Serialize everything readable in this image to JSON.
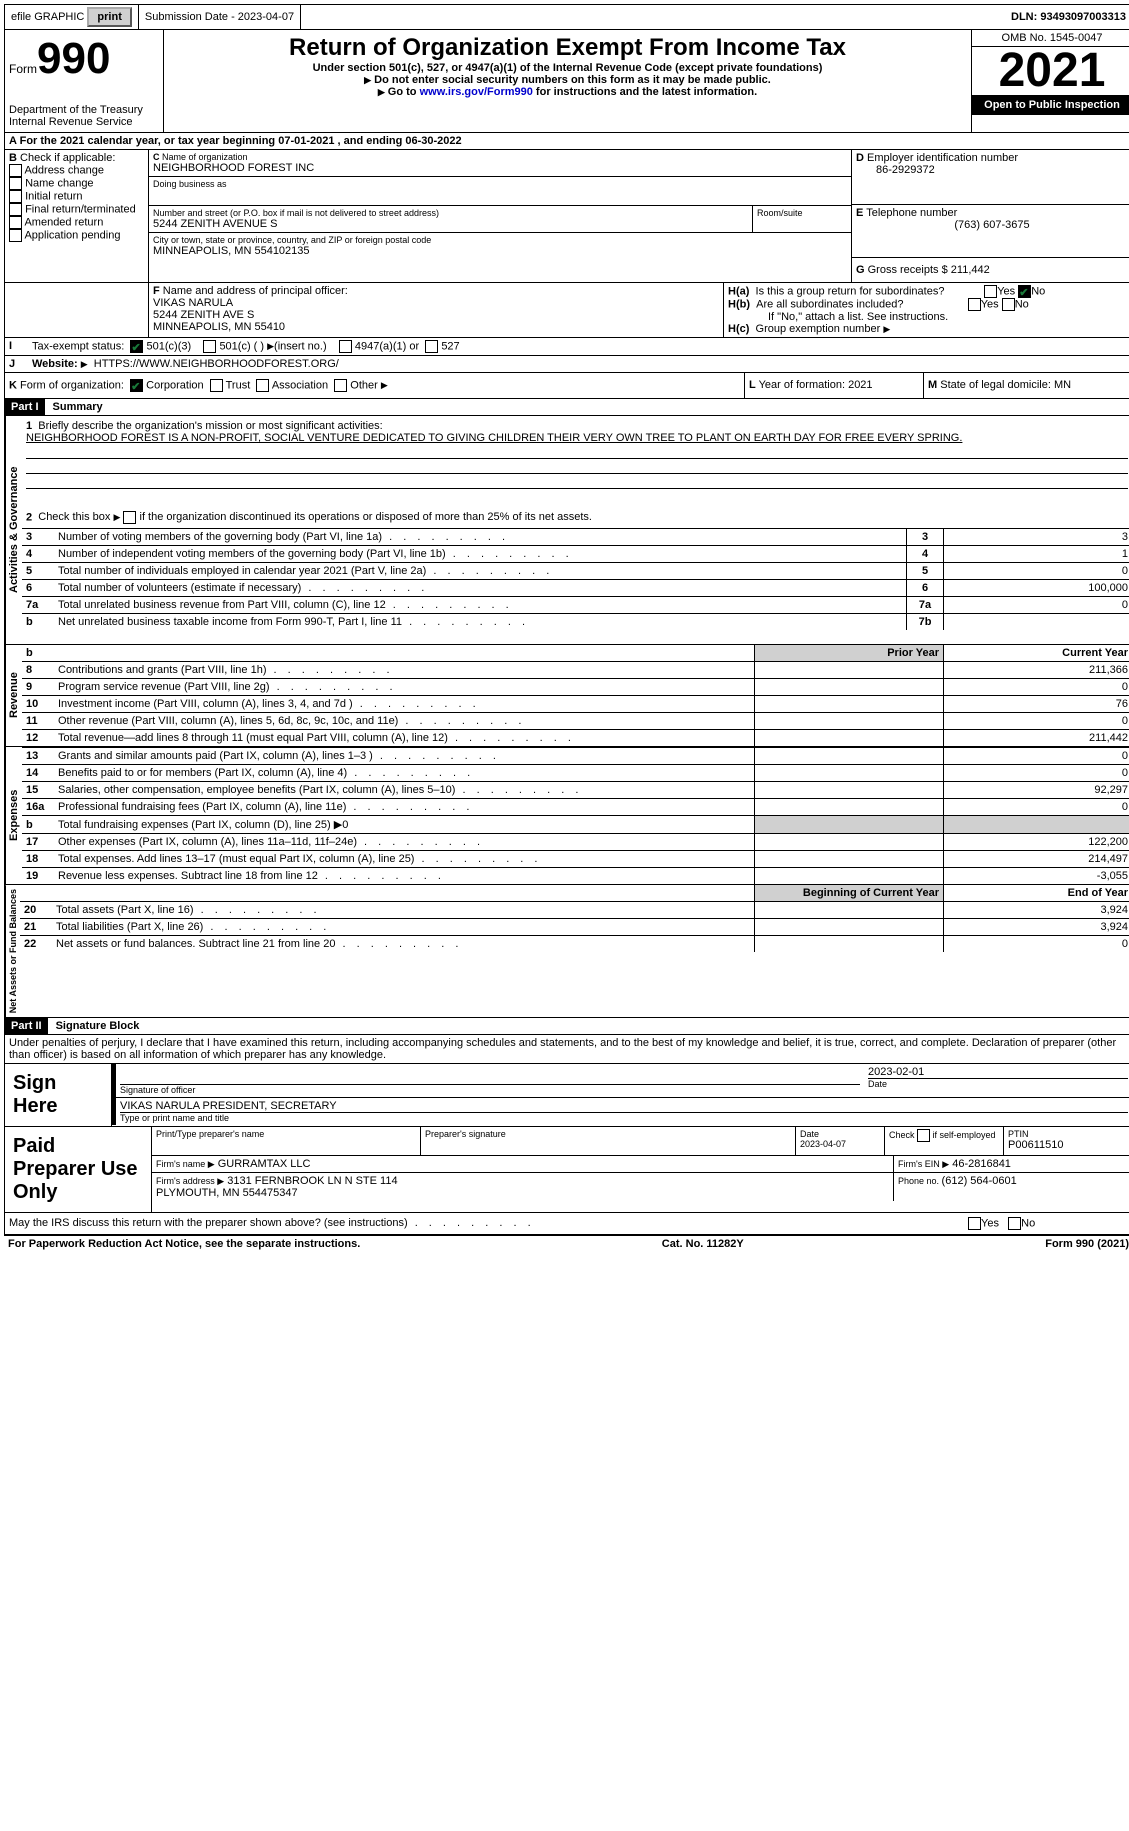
{
  "topbar": {
    "efile": "efile GRAPHIC",
    "print": "print",
    "submission_label": "Submission Date - 2023-04-07",
    "dln_label": "DLN: 93493097003313"
  },
  "header": {
    "form_prefix": "Form",
    "form_number": "990",
    "dept": "Department of the Treasury\nInternal Revenue Service",
    "title": "Return of Organization Exempt From Income Tax",
    "subtitle": "Under section 501(c), 527, or 4947(a)(1) of the Internal Revenue Code (except private foundations)",
    "no_ssn": "Do not enter social security numbers on this form as it may be made public.",
    "go_to_prefix": "Go to ",
    "go_to_link": "www.irs.gov/Form990",
    "go_to_suffix": " for instructions and the latest information.",
    "omb": "OMB No. 1545-0047",
    "year": "2021",
    "open": "Open to Public Inspection"
  },
  "period": {
    "line": "For the 2021 calendar year, or tax year beginning 07-01-2021   , and ending 06-30-2022"
  },
  "boxB": {
    "label": "Check if applicable:",
    "items": [
      "Address change",
      "Name change",
      "Initial return",
      "Final return/terminated",
      "Amended return",
      "Application pending"
    ]
  },
  "boxC": {
    "name_label": "Name of organization",
    "name": "NEIGHBORHOOD FOREST INC",
    "dba_label": "Doing business as",
    "street_label": "Number and street (or P.O. box if mail is not delivered to street address)",
    "room_label": "Room/suite",
    "street": "5244 ZENITH AVENUE S",
    "city_label": "City or town, state or province, country, and ZIP or foreign postal code",
    "city": "MINNEAPOLIS, MN  554102135"
  },
  "boxD": {
    "label": "Employer identification number",
    "ein": "86-2929372"
  },
  "boxE": {
    "label": "Telephone number",
    "phone": "(763) 607-3675"
  },
  "boxG": {
    "label": "Gross receipts $",
    "amount": "211,442"
  },
  "boxF": {
    "label": "Name and address of principal officer:",
    "name": "VIKAS NARULA",
    "street": "5244 ZENITH AVE S",
    "city": "MINNEAPOLIS, MN  55410"
  },
  "boxH": {
    "a": "Is this a group return for subordinates?",
    "b": "Are all subordinates included?",
    "b_note": "If \"No,\" attach a list. See instructions.",
    "c": "Group exemption number"
  },
  "boxI": {
    "label": "Tax-exempt status:",
    "opts": [
      "501(c)(3)",
      "501(c) (  )",
      "(insert no.)",
      "4947(a)(1) or",
      "527"
    ]
  },
  "boxJ": {
    "label": "Website:",
    "url": "HTTPS://WWW.NEIGHBORHOODFOREST.ORG/"
  },
  "boxK": {
    "label": "Form of organization:",
    "opts": [
      "Corporation",
      "Trust",
      "Association",
      "Other"
    ]
  },
  "boxL": {
    "label": "Year of formation: 2021"
  },
  "boxM": {
    "label": "State of legal domicile: MN"
  },
  "part1": {
    "header": "Part I",
    "title": "Summary",
    "q1_label": "Briefly describe the organization's mission or most significant activities:",
    "q1_text": "NEIGHBORHOOD FOREST IS A NON-PROFIT, SOCIAL VENTURE DEDICATED TO GIVING CHILDREN THEIR VERY OWN TREE TO PLANT ON EARTH DAY FOR FREE EVERY SPRING.",
    "q2": "Check this box    if the organization discontinued its operations or disposed of more than 25% of its net assets.",
    "lines": [
      {
        "n": "3",
        "text": "Number of voting members of the governing body (Part VI, line 1a)",
        "box": "3",
        "val": "3"
      },
      {
        "n": "4",
        "text": "Number of independent voting members of the governing body (Part VI, line 1b)",
        "box": "4",
        "val": "1"
      },
      {
        "n": "5",
        "text": "Total number of individuals employed in calendar year 2021 (Part V, line 2a)",
        "box": "5",
        "val": "0"
      },
      {
        "n": "6",
        "text": "Total number of volunteers (estimate if necessary)",
        "box": "6",
        "val": "100,000"
      },
      {
        "n": "7a",
        "text": "Total unrelated business revenue from Part VIII, column (C), line 12",
        "box": "7a",
        "val": "0"
      },
      {
        "n": "b",
        "text": "Net unrelated business taxable income from Form 990-T, Part I, line 11",
        "box": "7b",
        "val": ""
      }
    ],
    "prior_year": "Prior Year",
    "current_year": "Current Year",
    "revenue": [
      {
        "n": "8",
        "text": "Contributions and grants (Part VIII, line 1h)",
        "prior": "",
        "cur": "211,366"
      },
      {
        "n": "9",
        "text": "Program service revenue (Part VIII, line 2g)",
        "prior": "",
        "cur": "0"
      },
      {
        "n": "10",
        "text": "Investment income (Part VIII, column (A), lines 3, 4, and 7d )",
        "prior": "",
        "cur": "76"
      },
      {
        "n": "11",
        "text": "Other revenue (Part VIII, column (A), lines 5, 6d, 8c, 9c, 10c, and 11e)",
        "prior": "",
        "cur": "0"
      },
      {
        "n": "12",
        "text": "Total revenue—add lines 8 through 11 (must equal Part VIII, column (A), line 12)",
        "prior": "",
        "cur": "211,442"
      }
    ],
    "expenses": [
      {
        "n": "13",
        "text": "Grants and similar amounts paid (Part IX, column (A), lines 1–3 )",
        "prior": "",
        "cur": "0"
      },
      {
        "n": "14",
        "text": "Benefits paid to or for members (Part IX, column (A), line 4)",
        "prior": "",
        "cur": "0"
      },
      {
        "n": "15",
        "text": "Salaries, other compensation, employee benefits (Part IX, column (A), lines 5–10)",
        "prior": "",
        "cur": "92,297"
      },
      {
        "n": "16a",
        "text": "Professional fundraising fees (Part IX, column (A), line 11e)",
        "prior": "",
        "cur": "0"
      },
      {
        "n": "b",
        "text": "Total fundraising expenses (Part IX, column (D), line 25) ▶0",
        "prior": "shade",
        "cur": "shade"
      },
      {
        "n": "17",
        "text": "Other expenses (Part IX, column (A), lines 11a–11d, 11f–24e)",
        "prior": "",
        "cur": "122,200"
      },
      {
        "n": "18",
        "text": "Total expenses. Add lines 13–17 (must equal Part IX, column (A), line 25)",
        "prior": "",
        "cur": "214,497"
      },
      {
        "n": "19",
        "text": "Revenue less expenses. Subtract line 18 from line 12",
        "prior": "",
        "cur": "-3,055"
      }
    ],
    "beg_year": "Beginning of Current Year",
    "end_year": "End of Year",
    "netassets": [
      {
        "n": "20",
        "text": "Total assets (Part X, line 16)",
        "prior": "",
        "cur": "3,924"
      },
      {
        "n": "21",
        "text": "Total liabilities (Part X, line 26)",
        "prior": "",
        "cur": "3,924"
      },
      {
        "n": "22",
        "text": "Net assets or fund balances. Subtract line 21 from line 20",
        "prior": "",
        "cur": "0"
      }
    ],
    "vert_labels": {
      "gov": "Activities & Governance",
      "rev": "Revenue",
      "exp": "Expenses",
      "net": "Net Assets or Fund Balances"
    }
  },
  "part2": {
    "header": "Part II",
    "title": "Signature Block",
    "declaration": "Under penalties of perjury, I declare that I have examined this return, including accompanying schedules and statements, and to the best of my knowledge and belief, it is true, correct, and complete. Declaration of preparer (other than officer) is based on all information of which preparer has any knowledge.",
    "sign_here": "Sign Here",
    "sig_officer": "Signature of officer",
    "date": "Date",
    "date_val": "2023-02-01",
    "typed_name": "VIKAS NARULA  PRESIDENT, SECRETARY",
    "typed_label": "Type or print name and title",
    "paid": "Paid Preparer Use Only",
    "preparer_name_label": "Print/Type preparer's name",
    "preparer_sig_label": "Preparer's signature",
    "prep_date": "Date\n2023-04-07",
    "check_self": "Check        if self-employed",
    "ptin_label": "PTIN",
    "ptin": "P00611510",
    "firm_name_label": "Firm's name   ",
    "firm_name": "GURRAMTAX LLC",
    "firm_ein_label": "Firm's EIN ",
    "firm_ein": "46-2816841",
    "firm_addr_label": "Firm's address ",
    "firm_addr": "3131 FERNBROOK LN N STE 114\nPLYMOUTH, MN  554475347",
    "phone_label": "Phone no. ",
    "phone": "(612) 564-0601",
    "discuss": "May the IRS discuss this return with the preparer shown above? (see instructions)"
  },
  "footer": {
    "left": "For Paperwork Reduction Act Notice, see the separate instructions.",
    "mid": "Cat. No. 11282Y",
    "right": "Form 990 (2021)"
  }
}
